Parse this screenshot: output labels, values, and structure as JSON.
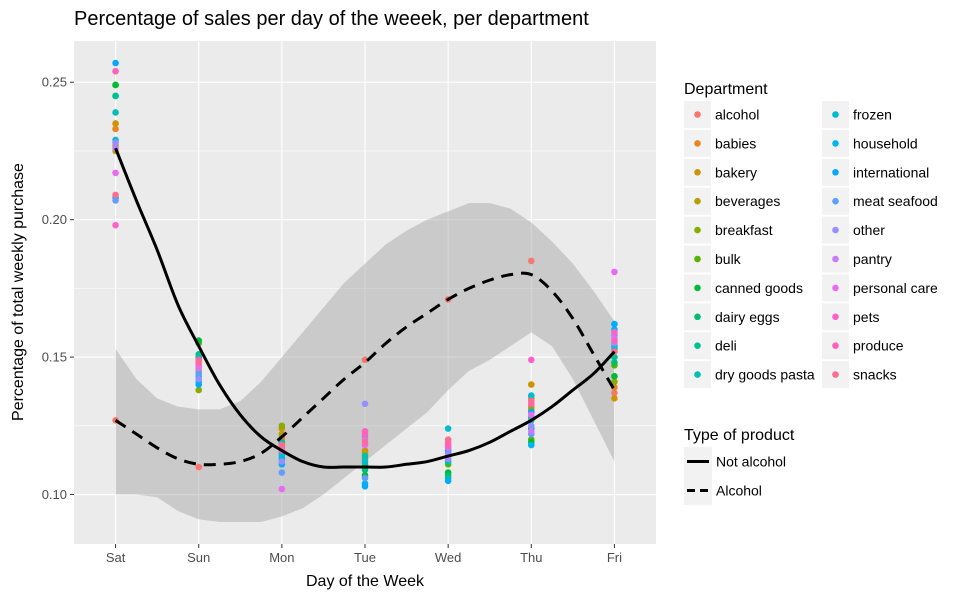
{
  "chart_data": {
    "type": "scatter",
    "title": "Percentage of sales per day of the weeek, per department",
    "xlabel": "Day of the Week",
    "ylabel": "Percentage of total weekly purchase",
    "categories": [
      "Sat",
      "Sun",
      "Mon",
      "Tue",
      "Wed",
      "Thu",
      "Fri"
    ],
    "yticks": [
      "0.10",
      "0.15",
      "0.20",
      "0.25"
    ],
    "ylim": [
      0.082,
      0.265
    ],
    "grid": true,
    "legend_position": "right",
    "departments": {
      "title": "Department",
      "items": [
        {
          "name": "alcohol",
          "color": "#F8766D"
        },
        {
          "name": "babies",
          "color": "#E7851E"
        },
        {
          "name": "bakery",
          "color": "#D09400"
        },
        {
          "name": "beverages",
          "color": "#B2A100"
        },
        {
          "name": "breakfast",
          "color": "#8BAB00"
        },
        {
          "name": "bulk",
          "color": "#55B400"
        },
        {
          "name": "canned goods",
          "color": "#00BA38"
        },
        {
          "name": "dairy eggs",
          "color": "#00BE6C"
        },
        {
          "name": "deli",
          "color": "#00C094"
        },
        {
          "name": "dry goods pasta",
          "color": "#00BFB4"
        },
        {
          "name": "frozen",
          "color": "#00BCD0"
        },
        {
          "name": "household",
          "color": "#00B6EB"
        },
        {
          "name": "international",
          "color": "#00ABFD"
        },
        {
          "name": "meat seafood",
          "color": "#619CFF"
        },
        {
          "name": "other",
          "color": "#9590FF"
        },
        {
          "name": "pantry",
          "color": "#C77CFF"
        },
        {
          "name": "personal care",
          "color": "#E76BF3"
        },
        {
          "name": "pets",
          "color": "#FF61CC"
        },
        {
          "name": "produce",
          "color": "#FF62BC"
        },
        {
          "name": "snacks",
          "color": "#FF6C91"
        }
      ]
    },
    "type_legend": {
      "title": "Type of product",
      "items": [
        {
          "name": "Not alcohol",
          "linetype": "solid"
        },
        {
          "name": "Alcohol",
          "linetype": "dashed"
        }
      ]
    },
    "points": [
      {
        "day": "Sat",
        "values": [
          0.127,
          0.233,
          0.235,
          0.225,
          0.227,
          0.249,
          0.249,
          0.245,
          0.245,
          0.239,
          0.229,
          0.208,
          0.257,
          0.207,
          0.228,
          0.226,
          0.217,
          0.198,
          0.254,
          0.209
        ]
      },
      {
        "day": "Sun",
        "values": [
          0.11,
          0.147,
          0.146,
          0.145,
          0.138,
          0.155,
          0.156,
          0.15,
          0.151,
          0.149,
          0.143,
          0.141,
          0.14,
          0.144,
          0.142,
          0.146,
          0.147,
          0.148,
          0.149,
          0.148
        ]
      },
      {
        "day": "Mon",
        "values": [
          0.121,
          0.12,
          0.124,
          0.122,
          0.125,
          0.118,
          0.116,
          0.117,
          0.119,
          0.115,
          0.114,
          0.113,
          0.111,
          0.108,
          0.112,
          0.118,
          0.102,
          0.116,
          0.117,
          0.118
        ]
      },
      {
        "day": "Tue",
        "values": [
          0.149,
          0.121,
          0.116,
          0.115,
          0.113,
          0.111,
          0.107,
          0.109,
          0.11,
          0.114,
          0.112,
          0.104,
          0.103,
          0.106,
          0.133,
          0.12,
          0.118,
          0.122,
          0.123,
          0.119
        ]
      },
      {
        "day": "Wed",
        "values": [
          0.171,
          0.118,
          0.117,
          0.116,
          0.114,
          0.111,
          0.108,
          0.107,
          0.106,
          0.112,
          0.124,
          0.116,
          0.105,
          0.115,
          0.113,
          0.114,
          0.117,
          0.119,
          0.118,
          0.12
        ]
      },
      {
        "day": "Thu",
        "values": [
          0.185,
          0.132,
          0.14,
          0.135,
          0.131,
          0.12,
          0.119,
          0.124,
          0.128,
          0.127,
          0.136,
          0.118,
          0.13,
          0.122,
          0.125,
          0.123,
          0.129,
          0.149,
          0.133,
          0.134
        ]
      },
      {
        "day": "Fri",
        "values": [
          0.137,
          0.139,
          0.135,
          0.143,
          0.141,
          0.147,
          0.143,
          0.148,
          0.15,
          0.153,
          0.154,
          0.16,
          0.162,
          0.158,
          0.155,
          0.157,
          0.181,
          0.159,
          0.156,
          0.152
        ]
      }
    ],
    "series": [
      {
        "name": "Not alcohol",
        "linetype": "solid",
        "x": [
          0,
          0.25,
          0.5,
          0.75,
          1,
          1.25,
          1.5,
          1.75,
          2,
          2.25,
          2.5,
          2.75,
          3,
          3.25,
          3.5,
          3.75,
          4,
          4.25,
          4.5,
          4.75,
          5,
          5.25,
          5.5,
          5.75,
          6
        ],
        "y": [
          0.226,
          0.207,
          0.189,
          0.169,
          0.154,
          0.14,
          0.129,
          0.121,
          0.116,
          0.112,
          0.11,
          0.11,
          0.11,
          0.11,
          0.111,
          0.112,
          0.114,
          0.116,
          0.119,
          0.123,
          0.127,
          0.132,
          0.138,
          0.144,
          0.152
        ]
      },
      {
        "name": "Alcohol",
        "linetype": "dashed",
        "x": [
          0,
          0.25,
          0.5,
          0.75,
          1,
          1.25,
          1.5,
          1.75,
          2,
          2.25,
          2.5,
          2.75,
          3,
          3.25,
          3.5,
          3.75,
          4,
          4.25,
          4.5,
          4.75,
          5,
          5.25,
          5.5,
          5.75,
          6
        ],
        "y": [
          0.127,
          0.122,
          0.117,
          0.113,
          0.111,
          0.111,
          0.112,
          0.115,
          0.121,
          0.128,
          0.135,
          0.142,
          0.148,
          0.155,
          0.161,
          0.166,
          0.171,
          0.175,
          0.178,
          0.18,
          0.18,
          0.174,
          0.164,
          0.151,
          0.138
        ],
        "ci_upper": [
          0.153,
          0.142,
          0.135,
          0.132,
          0.131,
          0.131,
          0.134,
          0.141,
          0.15,
          0.159,
          0.168,
          0.177,
          0.184,
          0.191,
          0.196,
          0.2,
          0.203,
          0.206,
          0.206,
          0.204,
          0.199,
          0.192,
          0.184,
          0.174,
          0.163
        ],
        "ci_lower": [
          0.1,
          0.1,
          0.099,
          0.094,
          0.091,
          0.09,
          0.09,
          0.09,
          0.092,
          0.095,
          0.1,
          0.106,
          0.112,
          0.118,
          0.124,
          0.13,
          0.138,
          0.145,
          0.149,
          0.154,
          0.159,
          0.154,
          0.142,
          0.127,
          0.112
        ]
      }
    ]
  }
}
